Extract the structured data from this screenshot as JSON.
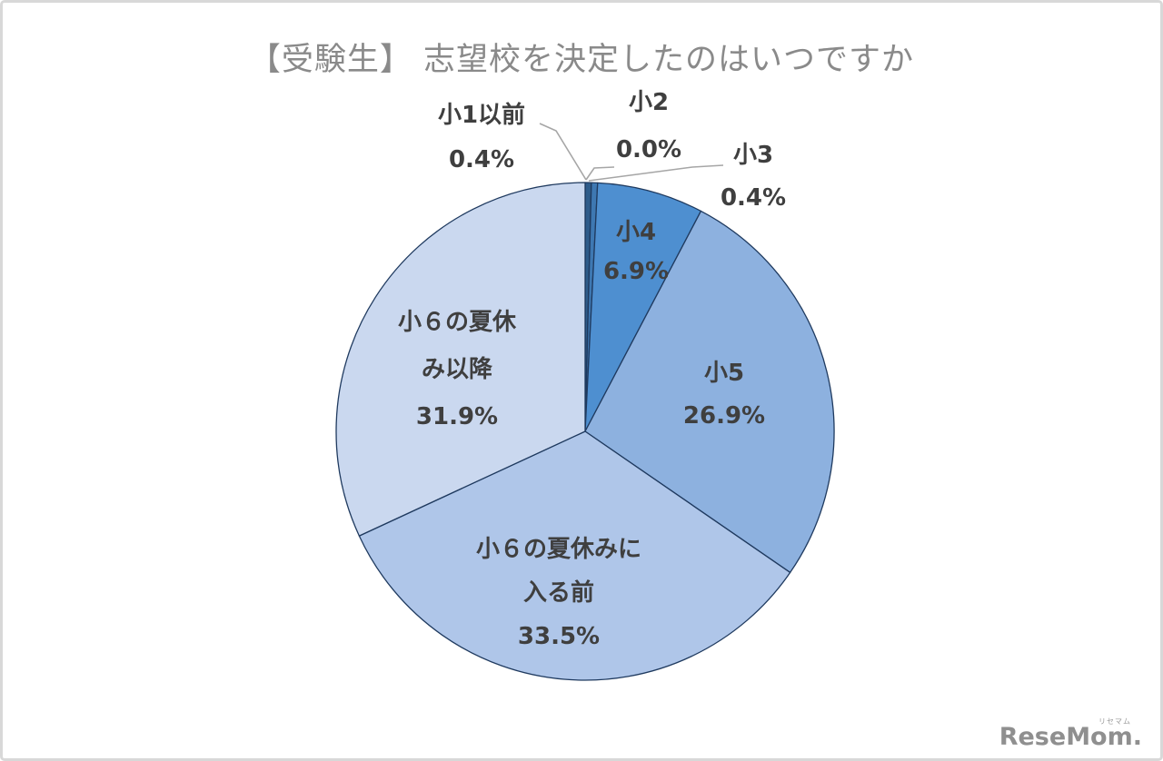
{
  "title": "【受験生】 志望校を決定したのはいつですか",
  "watermark": {
    "text": "ReseMom.",
    "ruby": "リセマム"
  },
  "chart_data": {
    "type": "pie",
    "title": "【受験生】 志望校を決定したのはいつですか",
    "unit": "%",
    "start_angle_deg": 0,
    "direction": "clockwise",
    "total": 100.0,
    "legend_position": "none",
    "slices": [
      {
        "label": "小1以前",
        "value": 0.4,
        "pct_label": "0.4%",
        "color": "#2E5C8A",
        "label_placement": "outside-left"
      },
      {
        "label": "小2",
        "value": 0.0,
        "pct_label": "0.0%",
        "color": "#38699E",
        "label_placement": "outside-top"
      },
      {
        "label": "小3",
        "value": 0.4,
        "pct_label": "0.4%",
        "color": "#3E78B2",
        "label_placement": "outside-right"
      },
      {
        "label": "小4",
        "value": 6.9,
        "pct_label": "6.9%",
        "color": "#4E8FD0",
        "label_placement": "inside"
      },
      {
        "label": "小5",
        "value": 26.9,
        "pct_label": "26.9%",
        "color": "#8DB1DF",
        "label_placement": "inside"
      },
      {
        "label": "小６の夏休みに入る前",
        "value": 33.5,
        "pct_label": "33.5%",
        "color": "#AFC6E9",
        "label_placement": "inside",
        "display_lines": {
          "l1": "小６の夏休みに",
          "l2": "入る前"
        }
      },
      {
        "label": "小６の夏休み以降",
        "value": 31.9,
        "pct_label": "31.9%",
        "color": "#CAD8EF",
        "label_placement": "inside",
        "display_lines": {
          "l1": "小６の夏休",
          "l2": "み以降"
        }
      }
    ],
    "style": {
      "slice_border_color": "#1F3A5F",
      "leader_line_color": "#A6A6A6",
      "label_color": "#3F3F3F",
      "title_color": "#8A8A8A",
      "background": "#FFFFFF",
      "frame_border_color": "#D8D8D8"
    }
  }
}
